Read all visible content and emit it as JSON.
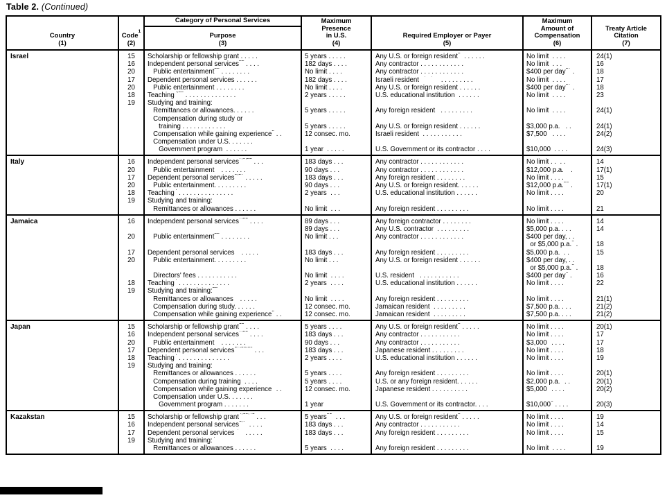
{
  "page_title": {
    "label": "Table 2.",
    "continued": "(Continued)"
  },
  "colors": {
    "ink": "#000000",
    "paper": "#ffffff"
  },
  "table": {
    "header": {
      "country": {
        "lines": [
          "Country"
        ],
        "num": "(1)"
      },
      "code": {
        "label": "Code",
        "sup": "1",
        "num": "(2)"
      },
      "category": "Category of Personal Services",
      "purpose": {
        "lines": [
          "Purpose"
        ],
        "num": "(3)"
      },
      "presence": {
        "lines": [
          "Maximum",
          "Presence",
          "in U.S."
        ],
        "num": "(4)"
      },
      "employer": {
        "lines": [
          "Required Employer or Payer"
        ],
        "num": "(5)"
      },
      "compensation": {
        "lines": [
          "Maximum",
          "Amount of",
          "Compensation"
        ],
        "num": "(6)"
      },
      "article": {
        "lines": [
          "Treaty Article",
          "Citation"
        ],
        "num": "(7)"
      }
    },
    "sections": [
      {
        "country": "Israel",
        "lines": [
          [
            "15",
            "Scholarship or fellowship grant . . . . .",
            "5 years . . . . .",
            "Any U.S. or foreign resident^{5}  . . . . . .",
            "No limit  . . . .",
            "24(1)"
          ],
          [
            "16",
            "Independent personal services^{22} . . . .",
            "182 days . . . .",
            "Any contractor . . . . . . . . . . . .",
            "No limit  . . .",
            "16"
          ],
          [
            "20",
            "   Public entertainment^{22} . . . . . . . .",
            "No limit . . . .",
            "Any contractor . . . . . . . . . . . .",
            "$400 per day^{37} .",
            "18"
          ],
          [
            "17",
            "Dependent personal services . . . . . .",
            "182 days . . . .",
            "Israeli resident^{16,17,18}  . . . . . . . . .",
            "No limit  . . . .",
            "17"
          ],
          [
            "20",
            "   Public entertainment . . . . . . . .",
            "No limit . . . .",
            "Any U.S. or foreign resident . . . . . .",
            "$400 per day^{37} .",
            "18"
          ],
          [
            "18",
            "Teaching^{4,23} . . . . . . . . . . . . . .",
            "2 years . . . . .",
            "U.S. educational institution  . . . . . .",
            "No limit  . . . .",
            "23"
          ],
          [
            "19",
            "Studying and training:",
            "",
            "",
            "",
            ""
          ],
          [
            "",
            "   Remittances or allowances. . . . . .",
            "5 years . . . . .",
            "Any foreign resident   . . . . . . . . .",
            "No limit  . . . .",
            "24(1)"
          ],
          [
            "",
            "   Compensation during study or",
            "",
            "",
            "",
            ""
          ],
          [
            "",
            "      training . . . . . . . . . . . .",
            "5 years . . . . .",
            "Any U.S. or foreign resident . . . . . .",
            "$3,000 p.a.   . .",
            "24(1)"
          ],
          [
            "",
            "   Compensation while gaining experience^{2} . .",
            "12 consec. mo.",
            "Israeli resident  . . . . . . . . . . .",
            "$7,500   . . . .",
            "24(2)"
          ],
          [
            "",
            "   Compensation under U.S. . . . . . .",
            "",
            "",
            "",
            ""
          ],
          [
            "",
            "      Government program  . . . . . .",
            "1 year  . . . . .",
            "U.S. Government or its contractor . . . .",
            "$10,000  . . . .",
            "24(3)"
          ]
        ]
      },
      {
        "country": "Italy",
        "lines": [
          [
            "16",
            "Independent personal services^{7,9,22} . . .",
            "183 days . . .",
            "Any contractor . . . . . . . . . . . .",
            "No limit . .  . .",
            "14"
          ],
          [
            "20",
            "   Public entertainment^{22} . . . . . . .",
            "90 days . . .",
            "Any contractor . . . . . . . . . . . .",
            "$12,000 p.a.^{25} .",
            "17(1)"
          ],
          [
            "17",
            "Dependent personal services^{9,17} . . . . .",
            "183 days . . .",
            "Any foreign resident . . . . . . . .",
            "No limit . . . .",
            "15"
          ],
          [
            "20",
            "   Public entertainment. . . . . . . . .",
            "90 days . . .",
            "Any U.S. or foreign resident. . . . . .",
            "$12,000 p.a.^{25} .",
            "17(1)"
          ],
          [
            "18",
            "Teaching^{4} . . . . . . . . . . . . . . .",
            "2 years  . . .",
            "U.S. educational institution . . . . . .",
            "No limit . . . .",
            "20"
          ],
          [
            "19",
            "Studying and training:",
            "",
            "",
            "",
            ""
          ],
          [
            "",
            "   Remittances or allowances . . . . . .",
            "No limit  . . .",
            "Any foreign resident . . . . . . . . .",
            "No limit . . . .",
            "21"
          ]
        ]
      },
      {
        "country": "Jamaica",
        "lines": [
          [
            "16",
            "Independent personal services^{7,22} . . . .",
            "89 days . . .",
            "Any foreign contractor . . . . . . . .",
            "No limit . . . .",
            "14"
          ],
          [
            "",
            "",
            "89 days . . .",
            "Any U.S. contractor  . . . . . . . . .",
            "$5,000 p.a. . . .",
            "14"
          ],
          [
            "20",
            "   Public entertainment^{22} . . . . . . . .",
            "No limit . . .",
            "Any contractor . . . . . . . . . . . .",
            "$400 per day, . .",
            ""
          ],
          [
            "",
            "",
            "",
            "",
            "  or $5,000 p.a.^{6} .",
            "18"
          ],
          [
            "17",
            "Dependent personal services^{17} . . . . .",
            "183 days . . .",
            "Any foreign resident . . . . . . . . .",
            "$5,000 p.a.  . .",
            "15"
          ],
          [
            "20",
            "   Public entertainment. . . . . . . . .",
            "No limit . . .",
            "Any U.S. or foreign resident . . . . . .",
            "$400 per day, . .",
            ""
          ],
          [
            "",
            "",
            "",
            "",
            "  or $5,000 p.a.^{6} .",
            "18"
          ],
          [
            "",
            "   Directors' fees . . . . . . . . . . .",
            "No limit  . . . .",
            "U.S. resident   . . . . . . . . . . .",
            "$400 per day^{6} .",
            "16"
          ],
          [
            "18",
            "Teaching^{4} . . . . . . . . . . . . . .",
            "2 years  . . . .",
            "U.S. educational institution . . . . . .",
            "No limit . . . .",
            "22"
          ],
          [
            "19",
            "Studying and training:^{28}",
            "",
            "",
            "",
            ""
          ],
          [
            "",
            "   Remittances or allowances^{11} . . . . .",
            "No limit  . . . .",
            "Any foreign resident . . . . . . . . .",
            "No limit . . . .",
            "21(1)"
          ],
          [
            "",
            "   Compensation during study. . . . . .",
            "12 consec. mo.",
            "Jamaican resident  . . . . . . . . .",
            "$7,500 p.a. . . .",
            "21(2)"
          ],
          [
            "",
            "   Compensation while gaining experience^{2} . .",
            "12 consec. mo.",
            "Jamaican resident  . . . . . . . . .",
            "$7,500 p.a. . . .",
            "21(2)"
          ]
        ]
      },
      {
        "country": "Japan",
        "lines": [
          [
            "15",
            "Scholarship or fellowship grant^{15} . . . .",
            "5 years . . . .",
            "Any U.S. or foreign resident^{5} . . . . .",
            "No limit . . . .",
            "20(1)"
          ],
          [
            "16",
            "Independent personal services^{7,22} . . . .",
            "183 days . . .",
            "Any contractor . . . . . . . . . . .",
            "No limit . . . .",
            "17"
          ],
          [
            "20",
            "   Public entertainment^{22} . . . . . . .",
            "90 days . . .",
            "Any contractor . . . . . . . . . . .",
            "$3,000^{6} . . . .",
            "17"
          ],
          [
            "17",
            "Dependent personal services^{17,18,19} . . .",
            "183 days . . .",
            "Japanese resident . . . . . . . . .",
            "No limit . . . .",
            "18"
          ],
          [
            "18",
            "Teaching^{4} . . . . . . . . . . . . . .",
            "2 years . . . .",
            "U.S. educational institution . . . . . .",
            "No limit . . . .",
            "19"
          ],
          [
            "19",
            "Studying and training:",
            "",
            "",
            "",
            ""
          ],
          [
            "",
            "   Remittances or allowances . . . . . .",
            "5 years . . . .",
            "Any foreign resident . . . . . . . . .",
            "No limit . . . .",
            "20(1)"
          ],
          [
            "",
            "   Compensation during training  . . . .",
            "5 years . . . .",
            "U.S. or any foreign resident. . . . . .",
            "$2,000 p.a.^{6} . .",
            "20(1)"
          ],
          [
            "",
            "   Compensation while gaining experience^{2} . .",
            "12 consec. mo.",
            "Japanese resident . . . . . . . . . .",
            "$5,000^{6} . . . .",
            "20(2)"
          ],
          [
            "",
            "   Compensation under U.S. . . . . . .",
            "",
            "",
            "",
            ""
          ],
          [
            "",
            "      Government program . . . . . . .",
            "1 year",
            "U.S. Government or its contractor. . . .",
            "$10,000^{6} . . . .",
            "20(3)"
          ]
        ]
      },
      {
        "country": "Kazakstan",
        "lines": [
          [
            "15",
            "Scholarship or fellowship grant^{4,15,41} . . .",
            "5 years^{31}  . . .",
            "Any U.S. or foreign resident^{5} . . . . .",
            "No limit . . . .",
            "19"
          ],
          [
            "16",
            "Independent personal services^{6,7}  . . . .",
            "183 days . . .",
            "Any contractor . . . . . . . . . . .",
            "No limit . . . .",
            "14"
          ],
          [
            "17",
            "Dependent personal services^{6,17} . . . . .",
            "183 days . . .",
            "Any foreign resident . . . . . . . . .",
            "No limit . . . .",
            "15"
          ],
          [
            "19",
            "Studying and training:^{4}",
            "",
            "",
            "",
            ""
          ],
          [
            "",
            "   Remittances or allowances . . . . . .",
            "5 years  . . . .",
            "Any foreign resident . . . . . . . . .",
            "No limit  . . . .",
            "19"
          ]
        ]
      }
    ]
  }
}
